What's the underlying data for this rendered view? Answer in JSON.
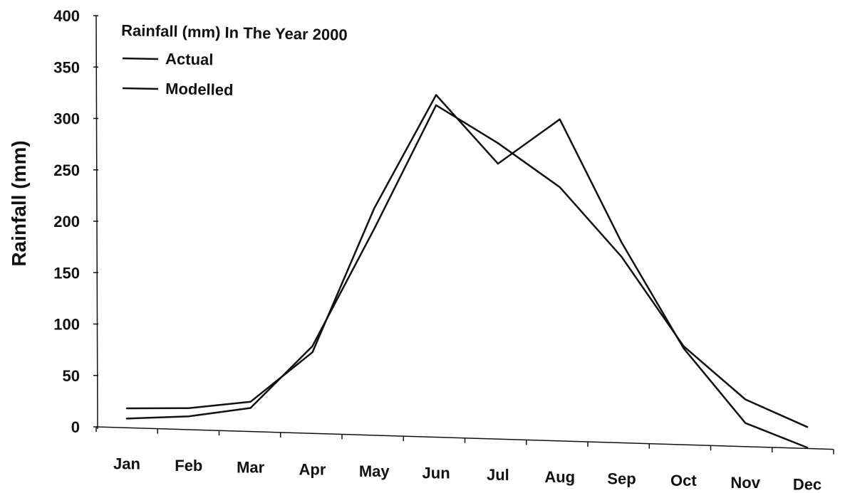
{
  "chart_data": {
    "type": "line",
    "title": "Rainfall (mm) In The Year 2000",
    "xlabel": "",
    "ylabel": "Rainfall (mm)",
    "ylim": [
      0,
      400
    ],
    "yticks": [
      0,
      50,
      100,
      150,
      200,
      250,
      300,
      350,
      400
    ],
    "categories": [
      "Jan",
      "Feb",
      "Mar",
      "Apr",
      "May",
      "Jun",
      "Jul",
      "Aug",
      "Sep",
      "Oct",
      "Nov",
      "Dec"
    ],
    "grid": false,
    "legend": "top-left",
    "series": [
      {
        "name": "Actual",
        "color": "#111111",
        "values": [
          18,
          20,
          28,
          78,
          220,
          332,
          267,
          312,
          194,
          93,
          22,
          0
        ]
      },
      {
        "name": "Modelled",
        "color": "#111111",
        "values": [
          8,
          12,
          22,
          84,
          200,
          322,
          287,
          246,
          180,
          95,
          45,
          20
        ]
      }
    ]
  }
}
